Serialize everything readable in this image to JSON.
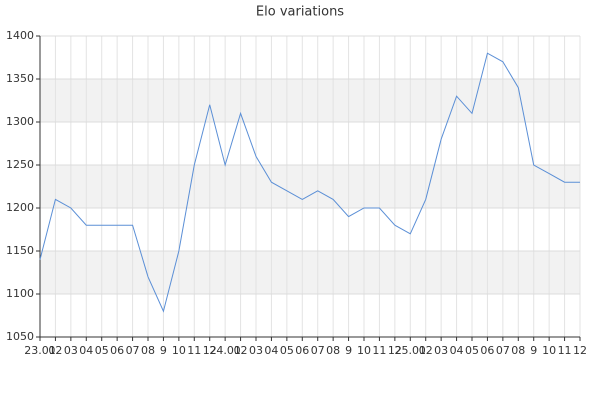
{
  "chart_data": {
    "type": "line",
    "title": "Elo variations",
    "categories": [
      "23.01",
      "02",
      "03",
      "04",
      "05",
      "06",
      "07",
      "08",
      "9",
      "10",
      "11",
      "12",
      "24.01",
      "02",
      "03",
      "04",
      "05",
      "06",
      "07",
      "08",
      "9",
      "10",
      "11",
      "12",
      "25.01",
      "02",
      "03",
      "04",
      "05",
      "06",
      "07",
      "08",
      "9",
      "10",
      "11",
      "12"
    ],
    "series": [
      {
        "name": "Elo",
        "color": "#5b8fd6",
        "values": [
          1140,
          1210,
          1200,
          1180,
          1180,
          1180,
          1180,
          1120,
          1080,
          1150,
          1250,
          1320,
          1250,
          1310,
          1260,
          1230,
          1220,
          1210,
          1220,
          1210,
          1190,
          1200,
          1200,
          1180,
          1170,
          1210,
          1280,
          1330,
          1310,
          1380,
          1370,
          1340,
          1250,
          1240,
          1230,
          1230
        ]
      }
    ],
    "ylim": [
      1050,
      1400
    ],
    "yticks": [
      1050,
      1100,
      1150,
      1200,
      1250,
      1300,
      1350,
      1400
    ],
    "grid": true
  }
}
